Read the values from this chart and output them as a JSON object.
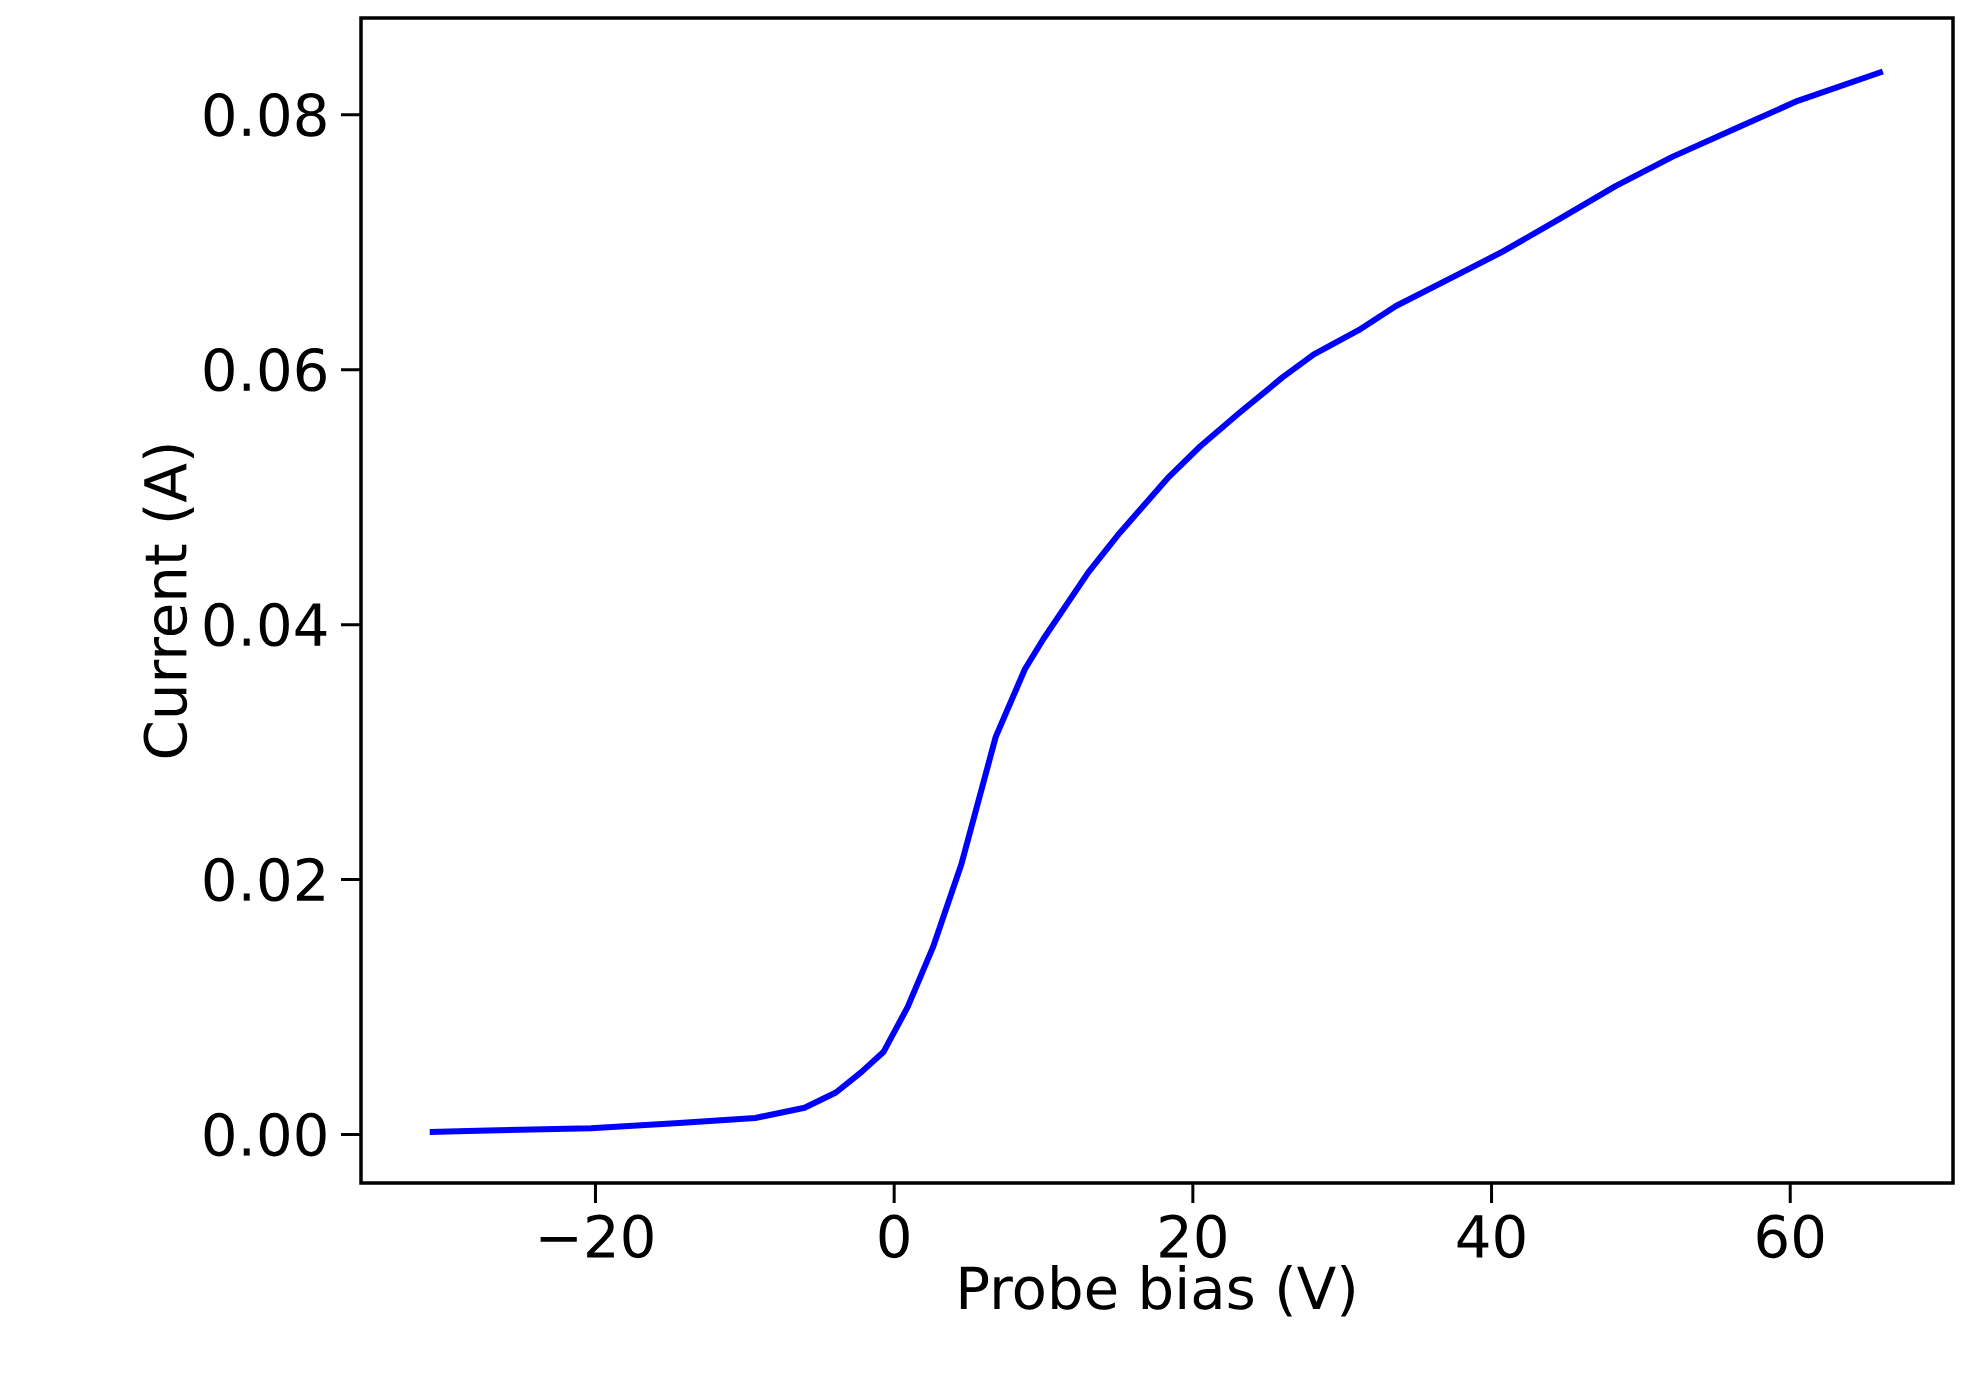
{
  "chart_data": {
    "type": "line",
    "xlabel": "Probe bias (V)",
    "ylabel": "Current (A)",
    "xlim": [
      -35.7,
      70.9
    ],
    "ylim": [
      -0.0038,
      0.0876
    ],
    "xticks": [
      {
        "value": -20,
        "label": "−20"
      },
      0,
      20,
      40,
      60
    ],
    "yticks": [
      {
        "value": 0,
        "label": "0.00"
      },
      {
        "value": 0.02,
        "label": "0.02"
      },
      {
        "value": 0.04,
        "label": "0.04"
      },
      {
        "value": 0.06,
        "label": "0.06"
      },
      {
        "value": 0.08,
        "label": "0.08"
      }
    ],
    "series": [
      {
        "color": "#0000ff",
        "x": [
          -31.1,
          -27.9,
          -20.3,
          -14.4,
          -9.3,
          -6.0,
          -3.9,
          -2.2,
          -0.7,
          0.9,
          2.6,
          4.5,
          6.8,
          8.75,
          10.0,
          13.0,
          15.1,
          18.4,
          20.5,
          23.1,
          26.0,
          28.1,
          31.1,
          33.6,
          37.8,
          40.8,
          44.5,
          48.3,
          52.1,
          56.3,
          60.5,
          66.2
        ],
        "values": [
          0.0002,
          0.0003,
          0.0005,
          0.0009,
          0.0013,
          0.0021,
          0.0033,
          0.0049,
          0.0065,
          0.01,
          0.0147,
          0.0212,
          0.0312,
          0.0365,
          0.0389,
          0.0441,
          0.0472,
          0.0516,
          0.054,
          0.0566,
          0.0594,
          0.0612,
          0.0631,
          0.065,
          0.0675,
          0.0693,
          0.0718,
          0.0744,
          0.0767,
          0.0789,
          0.0811,
          0.0834
        ]
      }
    ]
  }
}
